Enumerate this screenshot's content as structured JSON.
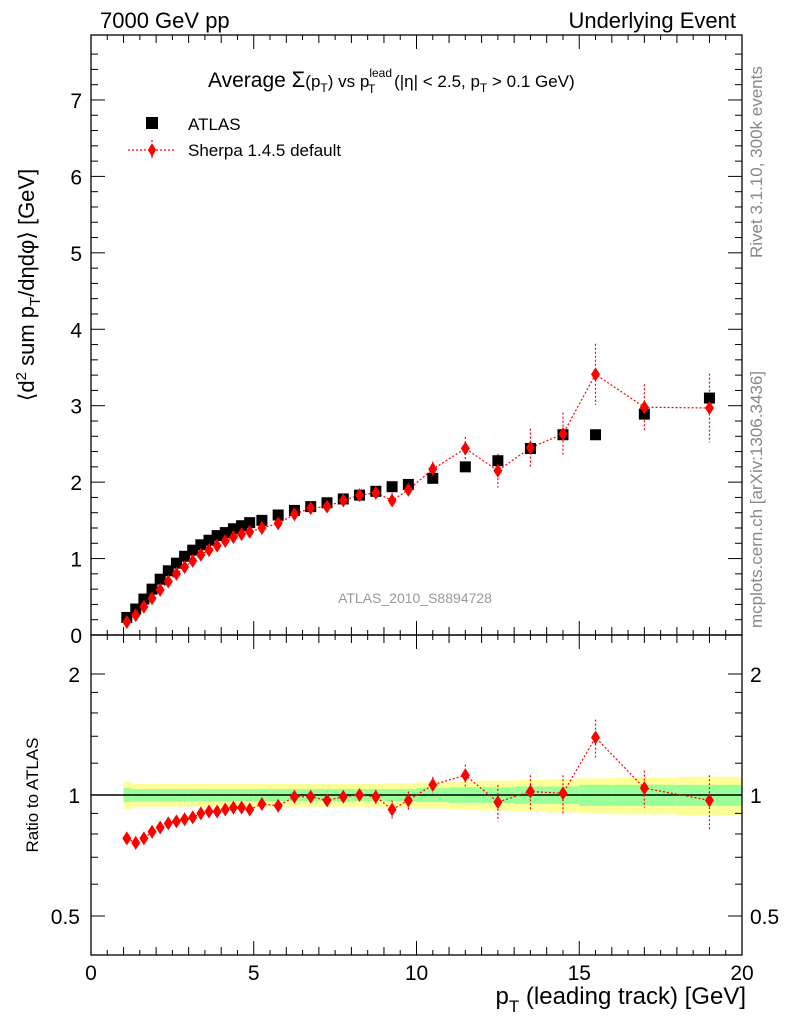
{
  "header": {
    "left": "7000 GeV pp",
    "right": "Underlying Event"
  },
  "sidebar": {
    "rivet": "Rivet 3.1.10,  300k events",
    "mcplots": "mcplots.cern.ch [arXiv:1306.3436]"
  },
  "chart_data": {
    "type": "scatter",
    "title_parts": {
      "t1": "Average ",
      "sigma": "Σ",
      "t2": "(p",
      "sub_t": "T",
      "t3": ") vs p",
      "sup_lead": "lead",
      "sub_t2": "T",
      "t4": " (|η| < 2.5, p",
      "sub_t3": "T",
      "t5": " > 0.1 GeV)"
    },
    "ylabel_parts": {
      "a": "⟨d",
      "sup2": "2",
      "b": " sum p",
      "subT": "T",
      "c": "/dηdφ⟩ [GeV]"
    },
    "xlabel_parts": {
      "a": "p",
      "subT": "T",
      "b": " (leading track) [GeV]"
    },
    "ratio_ylabel": "Ratio to ATLAS",
    "watermark": "ATLAS_2010_S8894728",
    "legend": {
      "atlas": "ATLAS",
      "sherpa": "Sherpa 1.4.5 default"
    },
    "xlim": [
      0,
      20
    ],
    "ylim": [
      0,
      7.85
    ],
    "ratio_ylim": [
      0.35,
      2.3
    ],
    "x_ticks": [
      "0",
      "5",
      "10",
      "15",
      "20"
    ],
    "y_ticks": [
      "0",
      "1",
      "2",
      "3",
      "4",
      "5",
      "6",
      "7"
    ],
    "ratio_ticks": [
      "0.5",
      "1",
      "2"
    ],
    "colors": {
      "atlas": "#000000",
      "sherpa": "#ff0000",
      "band_inner": "#99ff99",
      "band_outer": "#ffff99"
    },
    "series": [
      {
        "name": "ATLAS",
        "x": [
          1.1,
          1.375,
          1.625,
          1.875,
          2.125,
          2.375,
          2.625,
          2.875,
          3.125,
          3.375,
          3.625,
          3.875,
          4.125,
          4.375,
          4.625,
          4.875,
          5.25,
          5.75,
          6.25,
          6.75,
          7.25,
          7.75,
          8.25,
          8.75,
          9.25,
          9.75,
          10.5,
          11.5,
          12.5,
          13.5,
          14.5,
          15.5,
          17.0,
          19.0
        ],
        "y": [
          0.23,
          0.34,
          0.47,
          0.6,
          0.73,
          0.84,
          0.94,
          1.03,
          1.11,
          1.18,
          1.24,
          1.3,
          1.34,
          1.39,
          1.43,
          1.47,
          1.5,
          1.57,
          1.63,
          1.68,
          1.73,
          1.78,
          1.83,
          1.88,
          1.94,
          1.97,
          2.05,
          2.2,
          2.28,
          2.44,
          2.62,
          2.62,
          2.89,
          3.1
        ]
      },
      {
        "name": "Sherpa 1.4.5 default",
        "x": [
          1.1,
          1.375,
          1.625,
          1.875,
          2.125,
          2.375,
          2.625,
          2.875,
          3.125,
          3.375,
          3.625,
          3.875,
          4.125,
          4.375,
          4.625,
          4.875,
          5.25,
          5.75,
          6.25,
          6.75,
          7.25,
          7.75,
          8.25,
          8.75,
          9.25,
          9.75,
          10.5,
          11.5,
          12.5,
          13.5,
          14.5,
          15.5,
          17.0,
          19.0
        ],
        "y": [
          0.17,
          0.26,
          0.37,
          0.48,
          0.59,
          0.7,
          0.8,
          0.89,
          0.97,
          1.05,
          1.11,
          1.17,
          1.23,
          1.28,
          1.32,
          1.35,
          1.4,
          1.46,
          1.58,
          1.66,
          1.68,
          1.76,
          1.83,
          1.86,
          1.76,
          1.9,
          2.17,
          2.44,
          2.15,
          2.45,
          2.63,
          3.41,
          2.98,
          2.97
        ],
        "err": [
          0.01,
          0.01,
          0.01,
          0.01,
          0.01,
          0.01,
          0.01,
          0.01,
          0.01,
          0.01,
          0.01,
          0.01,
          0.02,
          0.02,
          0.02,
          0.02,
          0.02,
          0.02,
          0.03,
          0.03,
          0.04,
          0.05,
          0.06,
          0.07,
          0.1,
          0.1,
          0.1,
          0.15,
          0.22,
          0.25,
          0.28,
          0.4,
          0.3,
          0.45
        ]
      }
    ],
    "ratio": {
      "x": [
        1.1,
        1.375,
        1.625,
        1.875,
        2.125,
        2.375,
        2.625,
        2.875,
        3.125,
        3.375,
        3.625,
        3.875,
        4.125,
        4.375,
        4.625,
        4.875,
        5.25,
        5.75,
        6.25,
        6.75,
        7.25,
        7.75,
        8.25,
        8.75,
        9.25,
        9.75,
        10.5,
        11.5,
        12.5,
        13.5,
        14.5,
        15.5,
        17.0,
        19.0
      ],
      "y": [
        0.78,
        0.76,
        0.78,
        0.81,
        0.83,
        0.85,
        0.86,
        0.87,
        0.88,
        0.9,
        0.91,
        0.91,
        0.92,
        0.93,
        0.93,
        0.92,
        0.95,
        0.94,
        0.99,
        0.99,
        0.97,
        0.99,
        1.0,
        0.99,
        0.92,
        0.97,
        1.06,
        1.12,
        0.96,
        1.02,
        1.01,
        1.39,
        1.04,
        0.97
      ],
      "err": [
        0.01,
        0.01,
        0.01,
        0.01,
        0.01,
        0.01,
        0.01,
        0.01,
        0.01,
        0.01,
        0.01,
        0.01,
        0.01,
        0.01,
        0.01,
        0.01,
        0.01,
        0.01,
        0.02,
        0.02,
        0.02,
        0.03,
        0.03,
        0.04,
        0.05,
        0.05,
        0.05,
        0.07,
        0.1,
        0.1,
        0.11,
        0.15,
        0.11,
        0.15
      ],
      "band_edges": [
        1.0,
        1.25,
        2.0,
        3.0,
        4.0,
        5.0,
        6.0,
        7.0,
        8.0,
        9.0,
        10.0,
        11.0,
        12.0,
        13.0,
        14.0,
        15.0,
        16.0,
        18.0,
        20.0
      ],
      "band_inner": [
        0.04,
        0.035,
        0.035,
        0.035,
        0.035,
        0.035,
        0.035,
        0.035,
        0.035,
        0.035,
        0.04,
        0.045,
        0.045,
        0.05,
        0.05,
        0.06,
        0.06,
        0.06
      ],
      "band_outer": [
        0.08,
        0.065,
        0.065,
        0.065,
        0.065,
        0.065,
        0.065,
        0.065,
        0.065,
        0.07,
        0.075,
        0.08,
        0.085,
        0.09,
        0.095,
        0.1,
        0.105,
        0.11
      ]
    }
  }
}
